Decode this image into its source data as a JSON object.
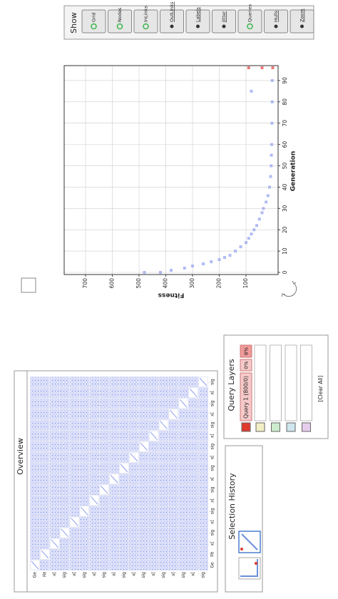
{
  "show_panel": {
    "title": "Show",
    "buttons": [
      {
        "label": "Grid",
        "active": true
      },
      {
        "label": "Nodes",
        "active": true
      },
      {
        "label": "InLinks",
        "active": true
      },
      {
        "label": "OutLinks",
        "active": false
      },
      {
        "label": "Labels",
        "active": false
      },
      {
        "label": "Jitter",
        "active": false
      },
      {
        "label": "Queries",
        "active": true
      },
      {
        "label": "Hulls",
        "active": false
      },
      {
        "label": "Zoom",
        "active": false
      }
    ]
  },
  "chart_data": {
    "type": "scatter",
    "xlabel": "Generation",
    "ylabel": "Fitness",
    "xlim": [
      -1,
      97
    ],
    "ylim": [
      -20,
      780
    ],
    "xticks": [
      0,
      10,
      20,
      30,
      40,
      50,
      60,
      70,
      80,
      90
    ],
    "yticks": [
      100,
      200,
      300,
      400,
      500,
      600,
      700
    ],
    "grid": true,
    "series": [
      {
        "color": "#8f9ef0",
        "x": [
          0,
          0,
          1,
          2,
          3,
          4,
          5,
          6,
          7,
          8,
          10,
          12,
          14,
          16,
          18,
          20,
          22,
          25,
          28,
          30,
          33,
          36,
          40,
          45,
          50,
          55,
          60,
          70,
          80,
          85,
          90
        ],
        "values": [
          480,
          420,
          380,
          330,
          300,
          260,
          230,
          200,
          180,
          160,
          140,
          120,
          100,
          90,
          80,
          70,
          60,
          50,
          40,
          35,
          25,
          18,
          12,
          8,
          6,
          5,
          4,
          3,
          2,
          80,
          2
        ]
      },
      {
        "color": "#e04040",
        "x": [
          96,
          96,
          96
        ],
        "values": [
          0,
          40,
          90
        ]
      }
    ]
  },
  "query_layers": {
    "title": "Query Layers",
    "query": {
      "label": "Query 1 (800/0)",
      "first_percent": "0%",
      "second_percent": "8%"
    },
    "colors": [
      "#e03a2e",
      "#f2efc4",
      "#cdeccd",
      "#cfe6ee",
      "#e6cdec"
    ],
    "clear_button": "[Clear All]"
  },
  "selection_history": {
    "title": "Selection History"
  },
  "overview": {
    "title": "Overview",
    "variables": [
      "Ge",
      "Fit",
      "x[",
      "sig",
      "x[",
      "sig",
      "x[",
      "sig",
      "x[",
      "sig",
      "x[",
      "sig",
      "x[",
      "sig",
      "x[",
      "sig",
      "x[",
      "sig"
    ]
  }
}
